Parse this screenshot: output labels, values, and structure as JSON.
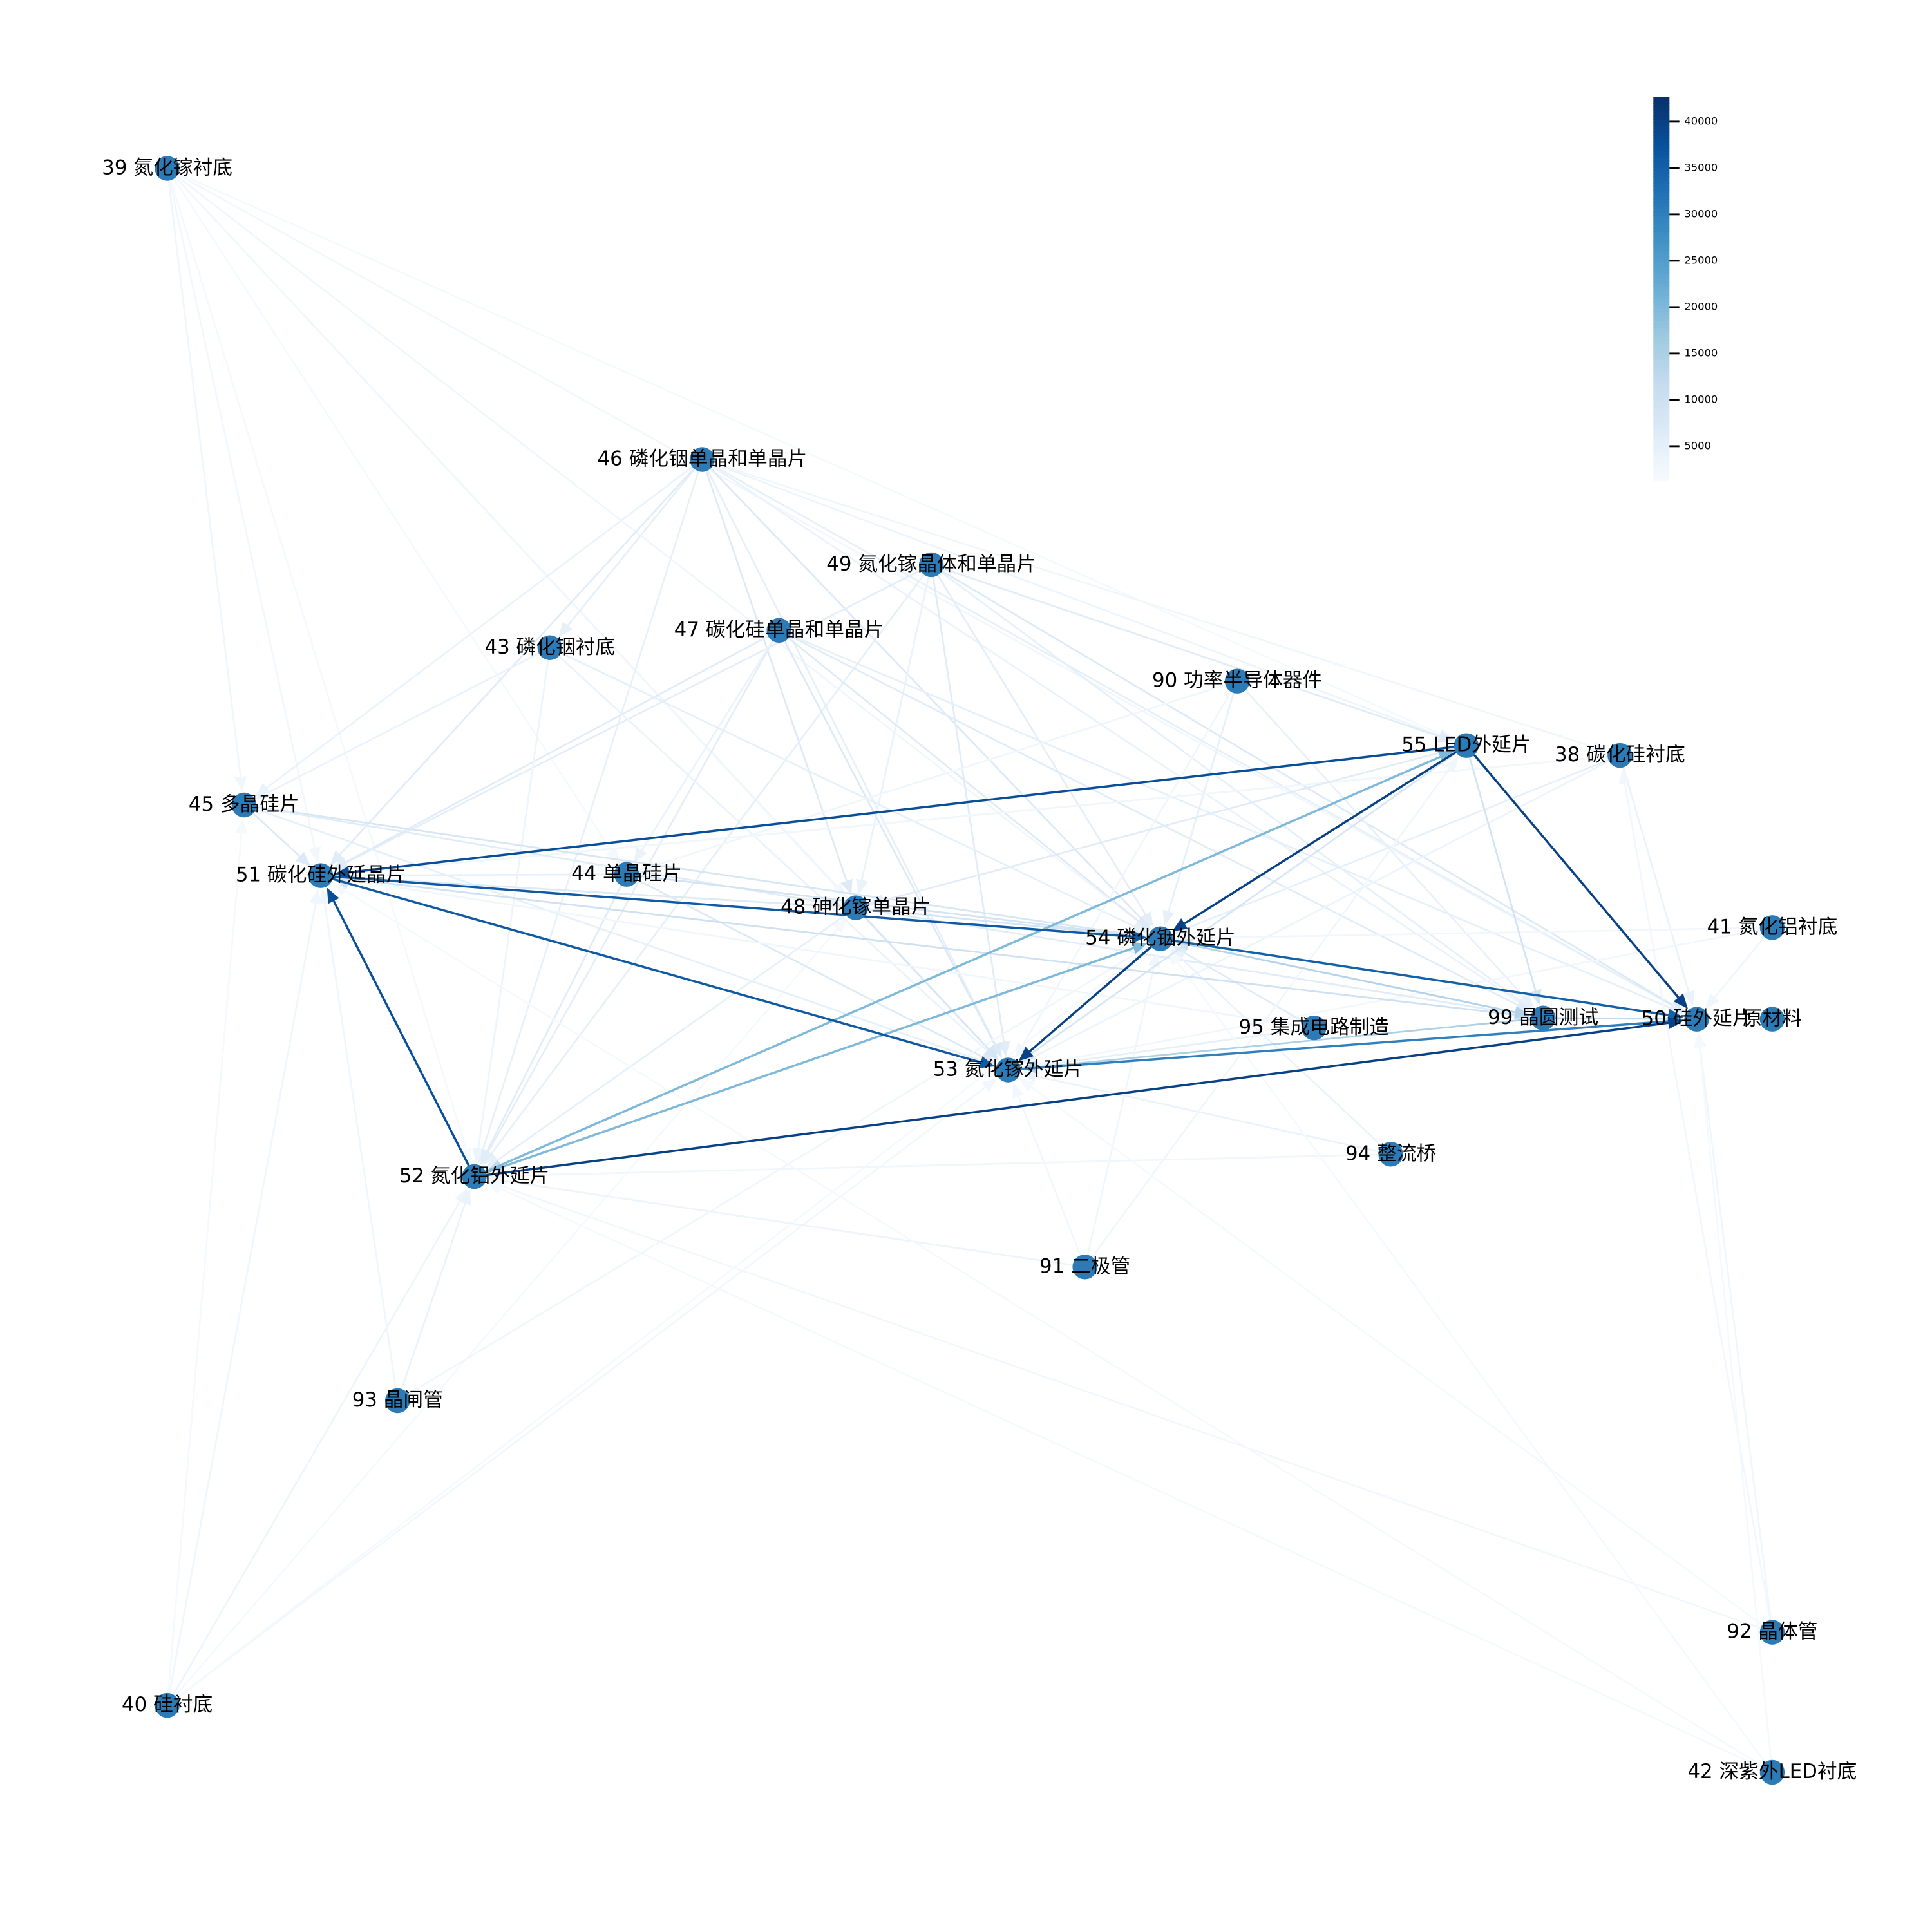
{
  "nodes": [
    {
      "id": 39,
      "name": "氮化镓衬底"
    },
    {
      "id": 46,
      "name": "磷化铟单晶和单晶片"
    },
    {
      "id": 49,
      "name": "氮化镓晶体和单晶片"
    },
    {
      "id": 43,
      "name": "磷化铟衬底"
    },
    {
      "id": 47,
      "name": "碳化硅单晶和单晶片"
    },
    {
      "id": 90,
      "name": "功率半导体器件"
    },
    {
      "id": 55,
      "name": "LED外延片"
    },
    {
      "id": 38,
      "name": "碳化硅衬底"
    },
    {
      "id": 45,
      "name": "多晶硅片"
    },
    {
      "id": 51,
      "name": "碳化硅外延晶片"
    },
    {
      "id": 44,
      "name": "单晶硅片"
    },
    {
      "id": 48,
      "name": "砷化镓单晶片"
    },
    {
      "id": 54,
      "name": "磷化铟外延片"
    },
    {
      "id": 41,
      "name": "氮化铝衬底"
    },
    {
      "id": 95,
      "name": "集成电路制造"
    },
    {
      "id": 99,
      "name": "晶圆测试"
    },
    {
      "id": 50,
      "name": "硅外延片"
    },
    {
      "name": "原材料"
    },
    {
      "id": 53,
      "name": "氮化镓外延片"
    },
    {
      "id": 94,
      "name": "整流桥"
    },
    {
      "id": 52,
      "name": "氮化铝外延片"
    },
    {
      "id": 91,
      "name": "二极管"
    },
    {
      "id": 93,
      "name": "晶闸管"
    },
    {
      "id": 92,
      "name": "晶体管"
    },
    {
      "id": 40,
      "name": "硅衬底"
    },
    {
      "id": 42,
      "name": "深紫外LED衬底"
    }
  ],
  "edges": [
    {
      "source": 39,
      "target": 45,
      "weight": 3000
    },
    {
      "source": 39,
      "target": 51,
      "weight": 2500
    },
    {
      "source": 39,
      "target": 52,
      "weight": 2000
    },
    {
      "source": 39,
      "target": 53,
      "weight": 3500
    },
    {
      "source": 39,
      "target": 54,
      "weight": 3000
    },
    {
      "source": 39,
      "target": 50,
      "weight": 2500
    },
    {
      "source": 39,
      "target": 55,
      "weight": 2000
    },
    {
      "source": 39,
      "target": 44,
      "weight": 2000
    },
    {
      "source": 39,
      "target": 48,
      "weight": 2500
    },
    {
      "source": 40,
      "target": 51,
      "weight": 3000
    },
    {
      "source": 40,
      "target": 52,
      "weight": 3500
    },
    {
      "source": 40,
      "target": 53,
      "weight": 2500
    },
    {
      "source": 40,
      "target": 54,
      "weight": 2000
    },
    {
      "source": 40,
      "target": 45,
      "weight": 2000
    },
    {
      "source": 40,
      "target": 48,
      "weight": 2000
    },
    {
      "source": 46,
      "target": 43,
      "weight": 5000
    },
    {
      "source": 46,
      "target": 45,
      "weight": 4000
    },
    {
      "source": 46,
      "target": 51,
      "weight": 6000
    },
    {
      "source": 46,
      "target": 52,
      "weight": 4500
    },
    {
      "source": 46,
      "target": 54,
      "weight": 7000
    },
    {
      "source": 46,
      "target": 53,
      "weight": 5000
    },
    {
      "source": 46,
      "target": 48,
      "weight": 6500
    },
    {
      "source": 46,
      "target": 99,
      "weight": 4000
    },
    {
      "source": 46,
      "target": 50,
      "weight": 5000
    },
    {
      "source": 46,
      "target": 55,
      "weight": 3500
    },
    {
      "source": 46,
      "target": 38,
      "weight": 3000
    },
    {
      "source": 49,
      "target": 53,
      "weight": 6000
    },
    {
      "source": 49,
      "target": 54,
      "weight": 5500
    },
    {
      "source": 49,
      "target": 55,
      "weight": 6000
    },
    {
      "source": 49,
      "target": 50,
      "weight": 7000
    },
    {
      "source": 49,
      "target": 52,
      "weight": 5000
    },
    {
      "source": 49,
      "target": 51,
      "weight": 5500
    },
    {
      "source": 49,
      "target": 99,
      "weight": 5000
    },
    {
      "source": 49,
      "target": 48,
      "weight": 4000
    },
    {
      "source": 47,
      "target": 51,
      "weight": 6000
    },
    {
      "source": 47,
      "target": 52,
      "weight": 5500
    },
    {
      "source": 47,
      "target": 53,
      "weight": 7000
    },
    {
      "source": 47,
      "target": 54,
      "weight": 6500
    },
    {
      "source": 47,
      "target": 50,
      "weight": 5000
    },
    {
      "source": 47,
      "target": 44,
      "weight": 4000
    },
    {
      "source": 47,
      "target": 99,
      "weight": 6000
    },
    {
      "source": 43,
      "target": 45,
      "weight": 4000
    },
    {
      "source": 43,
      "target": 54,
      "weight": 5000
    },
    {
      "source": 43,
      "target": 52,
      "weight": 3500
    },
    {
      "source": 43,
      "target": 53,
      "weight": 4000
    },
    {
      "source": 90,
      "target": 54,
      "weight": 5000
    },
    {
      "source": 90,
      "target": 99,
      "weight": 4500
    },
    {
      "source": 90,
      "target": 53,
      "weight": 3000
    },
    {
      "source": 90,
      "target": 44,
      "weight": 3000
    },
    {
      "source": 38,
      "target": 54,
      "weight": 5000
    },
    {
      "source": 38,
      "target": 50,
      "weight": 4000
    },
    {
      "source": 38,
      "target": 53,
      "weight": 3500
    },
    {
      "source": 38,
      "target": 51,
      "weight": 3000
    },
    {
      "source": 41,
      "target": 50,
      "weight": 3000
    },
    {
      "source": 41,
      "target": 54,
      "weight": 2500
    },
    {
      "source": 41,
      "target": 53,
      "weight": 2500
    },
    {
      "source": 45,
      "target": 54,
      "weight": 8000
    },
    {
      "source": 45,
      "target": 51,
      "weight": 7000
    },
    {
      "source": 45,
      "target": 48,
      "weight": 6000
    },
    {
      "source": 45,
      "target": 53,
      "weight": 5000
    },
    {
      "source": 44,
      "target": 54,
      "weight": 9000
    },
    {
      "source": 44,
      "target": 53,
      "weight": 7000
    },
    {
      "source": 44,
      "target": 51,
      "weight": 5000
    },
    {
      "source": 44,
      "target": 52,
      "weight": 6000
    },
    {
      "source": 48,
      "target": 54,
      "weight": 9000
    },
    {
      "source": 48,
      "target": 53,
      "weight": 8000
    },
    {
      "source": 48,
      "target": 52,
      "weight": 5000
    },
    {
      "source": 48,
      "target": 99,
      "weight": 6000
    },
    {
      "source": 48,
      "target": 51,
      "weight": 7000
    },
    {
      "source": 95,
      "target": 54,
      "weight": 6000
    },
    {
      "source": 95,
      "target": 53,
      "weight": 5000
    },
    {
      "source": 95,
      "target": 51,
      "weight": 3000
    },
    {
      "source": 94,
      "target": 54,
      "weight": 4000
    },
    {
      "source": 94,
      "target": 53,
      "weight": 4000
    },
    {
      "source": 94,
      "target": 52,
      "weight": 3000
    },
    {
      "source": 91,
      "target": 54,
      "weight": 3000
    },
    {
      "source": 91,
      "target": 52,
      "weight": 3500
    },
    {
      "source": 91,
      "target": 55,
      "weight": 3000
    },
    {
      "source": 91,
      "target": 53,
      "weight": 2500
    },
    {
      "source": 93,
      "target": 52,
      "weight": 4000
    },
    {
      "source": 93,
      "target": 54,
      "weight": 3000
    },
    {
      "source": 93,
      "target": 51,
      "weight": 3000
    },
    {
      "source": 92,
      "target": 50,
      "weight": 3000
    },
    {
      "source": 92,
      "target": 52,
      "weight": 2500
    },
    {
      "source": 92,
      "target": 53,
      "weight": 2000
    },
    {
      "source": 92,
      "target": 38,
      "weight": 2500
    },
    {
      "source": 42,
      "target": 50,
      "weight": 2000
    },
    {
      "source": 42,
      "target": 52,
      "weight": 2000
    },
    {
      "source": 42,
      "target": 51,
      "weight": 1800
    },
    {
      "source": 42,
      "target": 54,
      "weight": 2000
    },
    {
      "source": 99,
      "target": 54,
      "weight": 10000
    },
    {
      "source": 99,
      "target": 53,
      "weight": 15000
    },
    {
      "source": 99,
      "target": 50,
      "weight": 12000
    },
    {
      "source": 55,
      "target": 99,
      "weight": 9000
    },
    {
      "source": 55,
      "target": 53,
      "weight": 8000
    },
    {
      "source": 55,
      "target": 48,
      "weight": 6000
    },
    {
      "source": 55,
      "target": 52,
      "weight": 12000
    },
    {
      "source": 51,
      "target": 99,
      "weight": 10000
    },
    {
      "source": 54,
      "target": 99,
      "weight": 14000
    },
    {
      "source": 53,
      "target": 51,
      "weight": 9000
    },
    {
      "source": 52,
      "target": 55,
      "weight": 20000
    },
    {
      "source": 52,
      "target": 54,
      "weight": 20000
    },
    {
      "source": 53,
      "target": 50,
      "weight": 30000
    },
    {
      "source": 54,
      "target": 50,
      "weight": 35000
    },
    {
      "source": 51,
      "target": 53,
      "weight": 36000
    },
    {
      "source": 51,
      "target": 54,
      "weight": 36000
    },
    {
      "source": 55,
      "target": 51,
      "weight": 38000
    },
    {
      "source": 52,
      "target": 51,
      "weight": 38000
    },
    {
      "source": 55,
      "target": 54,
      "weight": 40000
    },
    {
      "source": 55,
      "target": 50,
      "weight": 40000
    },
    {
      "source": 52,
      "target": 50,
      "weight": 40000
    },
    {
      "source": 54,
      "target": 53,
      "weight": 40000
    }
  ],
  "node_color": "#2c7bb6",
  "colormap": [
    "#f7fbff",
    "#deebf7",
    "#c6dbef",
    "#9ecae1",
    "#6baed6",
    "#4292c6",
    "#2171b5",
    "#08519c",
    "#08306b"
  ],
  "colorbar": {
    "clim": [
      1300,
      42700
    ],
    "ticks": [
      5000,
      10000,
      15000,
      20000,
      25000,
      30000,
      35000,
      40000
    ]
  }
}
